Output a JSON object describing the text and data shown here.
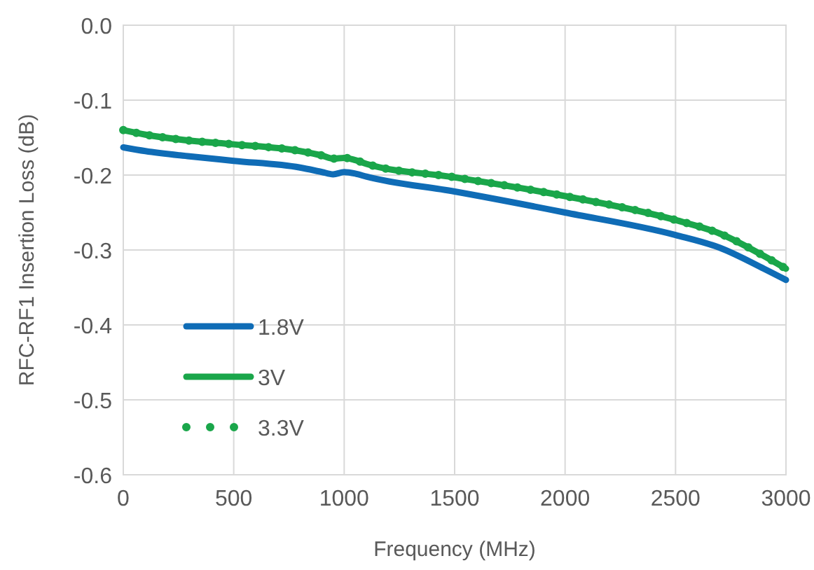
{
  "chart_data": {
    "type": "line",
    "xlabel": "Frequency (MHz)",
    "ylabel": "RFC-RF1 Insertion Loss (dB)",
    "x": [
      0,
      100,
      300,
      500,
      800,
      900,
      950,
      1000,
      1050,
      1100,
      1500,
      2000,
      2500,
      2700,
      2900,
      3000
    ],
    "series": [
      {
        "name": "1.8V",
        "color": "#0f6cb6",
        "line_style": "solid",
        "values": [
          -0.163,
          -0.168,
          -0.175,
          -0.181,
          -0.19,
          -0.196,
          -0.199,
          -0.196,
          -0.198,
          -0.202,
          -0.222,
          -0.25,
          -0.28,
          -0.297,
          -0.325,
          -0.34
        ]
      },
      {
        "name": "3V",
        "color": "#1aa64a",
        "line_style": "solid",
        "values": [
          -0.14,
          -0.146,
          -0.154,
          -0.159,
          -0.168,
          -0.174,
          -0.178,
          -0.177,
          -0.18,
          -0.185,
          -0.203,
          -0.228,
          -0.26,
          -0.278,
          -0.308,
          -0.325
        ]
      },
      {
        "name": "3.3V",
        "color": "#1aa64a",
        "line_style": "dotted",
        "values": [
          -0.14,
          -0.146,
          -0.154,
          -0.159,
          -0.168,
          -0.174,
          -0.178,
          -0.177,
          -0.18,
          -0.185,
          -0.203,
          -0.228,
          -0.26,
          -0.278,
          -0.308,
          -0.325
        ]
      }
    ],
    "xlim": [
      0,
      3000
    ],
    "xticks": [
      0,
      500,
      1000,
      1500,
      2000,
      2500,
      3000
    ],
    "ylim": [
      -0.6,
      0
    ],
    "yticks": [
      {
        "value": -0.6,
        "label": "-0.6"
      },
      {
        "value": -0.5,
        "label": "-0.5"
      },
      {
        "value": -0.4,
        "label": "-0.4"
      },
      {
        "value": -0.3,
        "label": "-0.3"
      },
      {
        "value": -0.2,
        "label": "-0.2"
      },
      {
        "value": -0.1,
        "label": "-0.1"
      },
      {
        "value": 0,
        "label": "0.0"
      }
    ],
    "grid": true,
    "legend": "left"
  }
}
